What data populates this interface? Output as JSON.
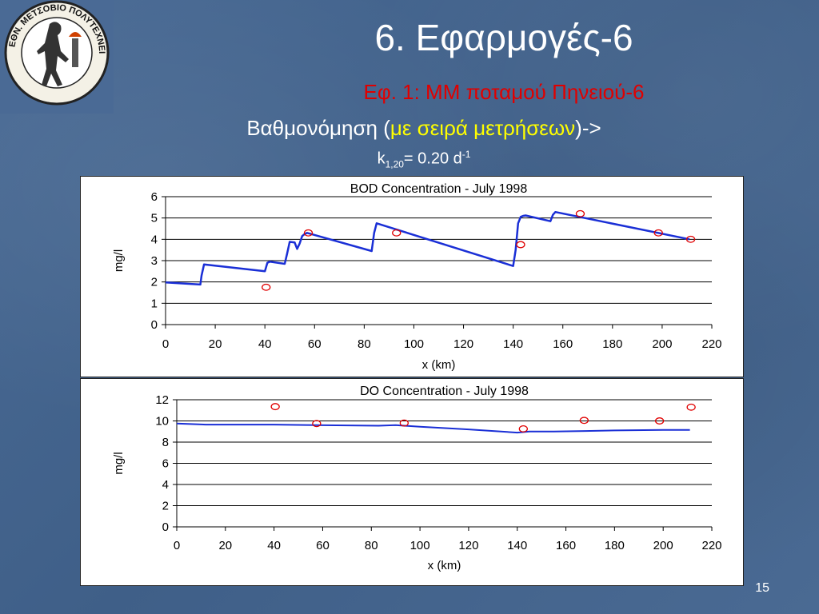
{
  "slide": {
    "title": "6. Εφαρμογές-6",
    "subtitle": "Εφ. 1: ΜΜ ποταμού Πηνειού-6",
    "line3_pre": "Βαθμονόμηση (",
    "line3_highlight": "με σειρά μετρήσεων",
    "line3_post": ")->",
    "k_symbol": "k",
    "k_sub": "1,20",
    "k_value": "= 0.20 d",
    "k_sup": "-1",
    "page_number": "15"
  },
  "logo": {
    "text": "ΕΘΝ. ΜΕΤΣΟΒΙΟ ΠΟΛΥΤΕΧΝΕΙΟ"
  },
  "colors": {
    "title": "#ffffff",
    "subtitle": "#e00000",
    "highlight": "#ffff00",
    "model_line": "#1a2fd6",
    "observed_marker": "#e00000"
  },
  "chart_data": [
    {
      "type": "line",
      "title": "BOD Concentration - July 1998",
      "xlabel": "x (km)",
      "ylabel": "mg/l",
      "xlim": [
        0,
        220
      ],
      "ylim": [
        0,
        6
      ],
      "xticks": [
        0,
        20,
        40,
        60,
        80,
        100,
        120,
        140,
        160,
        180,
        200,
        220
      ],
      "yticks": [
        0,
        1,
        2,
        3,
        4,
        5,
        6
      ],
      "grid": "horizontal",
      "series": [
        {
          "style": "line",
          "x": [
            0,
            14,
            14.5,
            15.5,
            40,
            41,
            42,
            48,
            49,
            50,
            52,
            53,
            54,
            55,
            56,
            57,
            83,
            84,
            85,
            140,
            141,
            142,
            143,
            144,
            145,
            155,
            156,
            157,
            211
          ],
          "y": [
            1.98,
            1.88,
            2.3,
            2.82,
            2.5,
            2.9,
            2.95,
            2.85,
            3.35,
            3.88,
            3.85,
            3.55,
            3.8,
            4.15,
            4.25,
            4.3,
            3.45,
            4.3,
            4.75,
            2.75,
            3.5,
            4.75,
            5.05,
            5.1,
            5.12,
            4.85,
            5.15,
            5.28,
            4.0
          ]
        },
        {
          "style": "markers",
          "x": [
            40.5,
            57.5,
            93,
            143,
            167,
            198.5,
            211.5
          ],
          "y": [
            1.75,
            4.3,
            4.3,
            3.75,
            5.2,
            4.3,
            4.0
          ]
        }
      ]
    },
    {
      "type": "line",
      "title": "DO Concentration  - July 1998",
      "xlabel": "x (km)",
      "ylabel": "mg/l",
      "xlim": [
        0,
        220
      ],
      "ylim": [
        0,
        12
      ],
      "xticks": [
        0,
        20,
        40,
        60,
        80,
        100,
        120,
        140,
        160,
        180,
        200,
        220
      ],
      "yticks": [
        0,
        2,
        4,
        6,
        8,
        10,
        12
      ],
      "grid": "horizontal",
      "series": [
        {
          "style": "line",
          "x": [
            0,
            12,
            40,
            57,
            83,
            90,
            100,
            120,
            140,
            145,
            155,
            168,
            180,
            200,
            211
          ],
          "y": [
            9.75,
            9.65,
            9.65,
            9.6,
            9.55,
            9.6,
            9.45,
            9.2,
            8.9,
            9.0,
            9.0,
            9.05,
            9.1,
            9.15,
            9.15
          ]
        },
        {
          "style": "markers",
          "x": [
            40.5,
            57.5,
            93.5,
            142.5,
            167.5,
            198.5,
            211.5
          ],
          "y": [
            11.35,
            9.75,
            9.8,
            9.25,
            10.05,
            10.0,
            11.3
          ]
        }
      ]
    }
  ]
}
